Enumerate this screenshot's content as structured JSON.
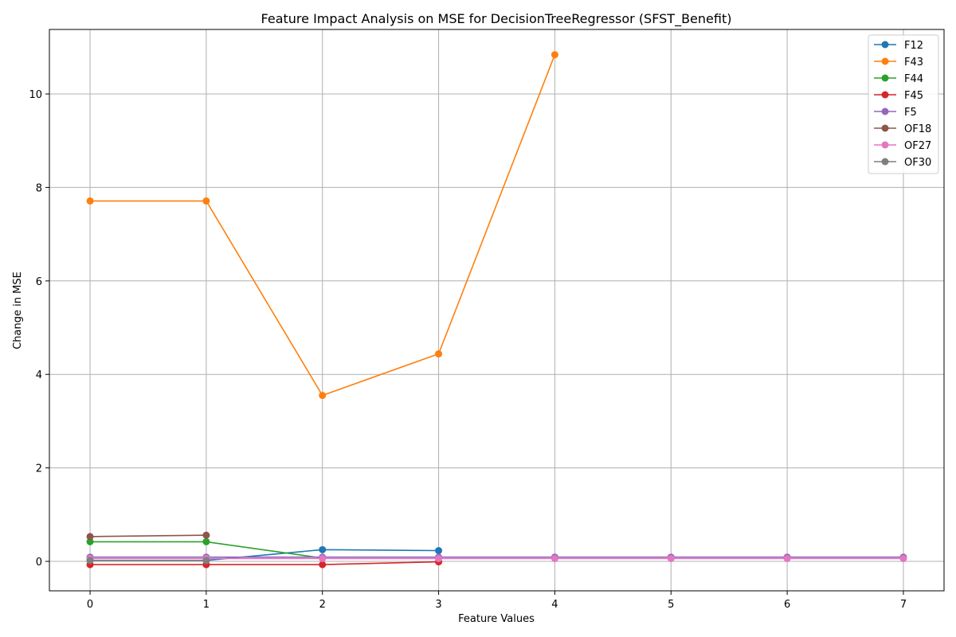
{
  "chart_data": {
    "type": "line",
    "title": "Feature Impact Analysis on MSE for DecisionTreeRegressor (SFST_Benefit)",
    "xlabel": "Feature Values",
    "ylabel": "Change in MSE",
    "xlim": [
      -0.35,
      7.35
    ],
    "ylim": [
      -0.63,
      11.38
    ],
    "xticks": [
      0,
      1,
      2,
      3,
      4,
      5,
      6,
      7
    ],
    "yticks": [
      0,
      2,
      4,
      6,
      8,
      10
    ],
    "grid": true,
    "legend_position": "top-right",
    "series": [
      {
        "name": "F12",
        "color": "#1f77b4",
        "x": [
          0,
          1,
          2,
          3
        ],
        "y": [
          0.02,
          0.02,
          0.25,
          0.23
        ]
      },
      {
        "name": "F43",
        "color": "#ff7f0e",
        "x": [
          0,
          1,
          2,
          3,
          4
        ],
        "y": [
          7.71,
          7.71,
          3.55,
          4.44,
          10.84
        ]
      },
      {
        "name": "F44",
        "color": "#2ca02c",
        "x": [
          0,
          1,
          2
        ],
        "y": [
          0.42,
          0.42,
          0.07
        ]
      },
      {
        "name": "F45",
        "color": "#d62728",
        "x": [
          0,
          1,
          2,
          3
        ],
        "y": [
          -0.07,
          -0.07,
          -0.07,
          -0.01
        ]
      },
      {
        "name": "F5",
        "color": "#9467bd",
        "x": [
          0,
          1,
          2,
          3,
          4,
          5,
          6,
          7
        ],
        "y": [
          0.09,
          0.09,
          0.09,
          0.09,
          0.09,
          0.09,
          0.09,
          0.09
        ]
      },
      {
        "name": "OF18",
        "color": "#8c564b",
        "x": [
          0,
          1
        ],
        "y": [
          0.53,
          0.56
        ]
      },
      {
        "name": "OF27",
        "color": "#e377c2",
        "x": [
          0,
          1,
          2,
          3,
          4,
          5,
          6,
          7
        ],
        "y": [
          0.06,
          0.06,
          0.06,
          0.06,
          0.06,
          0.06,
          0.06,
          0.06
        ]
      },
      {
        "name": "OF30",
        "color": "#7f7f7f",
        "x": [
          0,
          1
        ],
        "y": [
          0.02,
          0.02
        ]
      }
    ]
  }
}
